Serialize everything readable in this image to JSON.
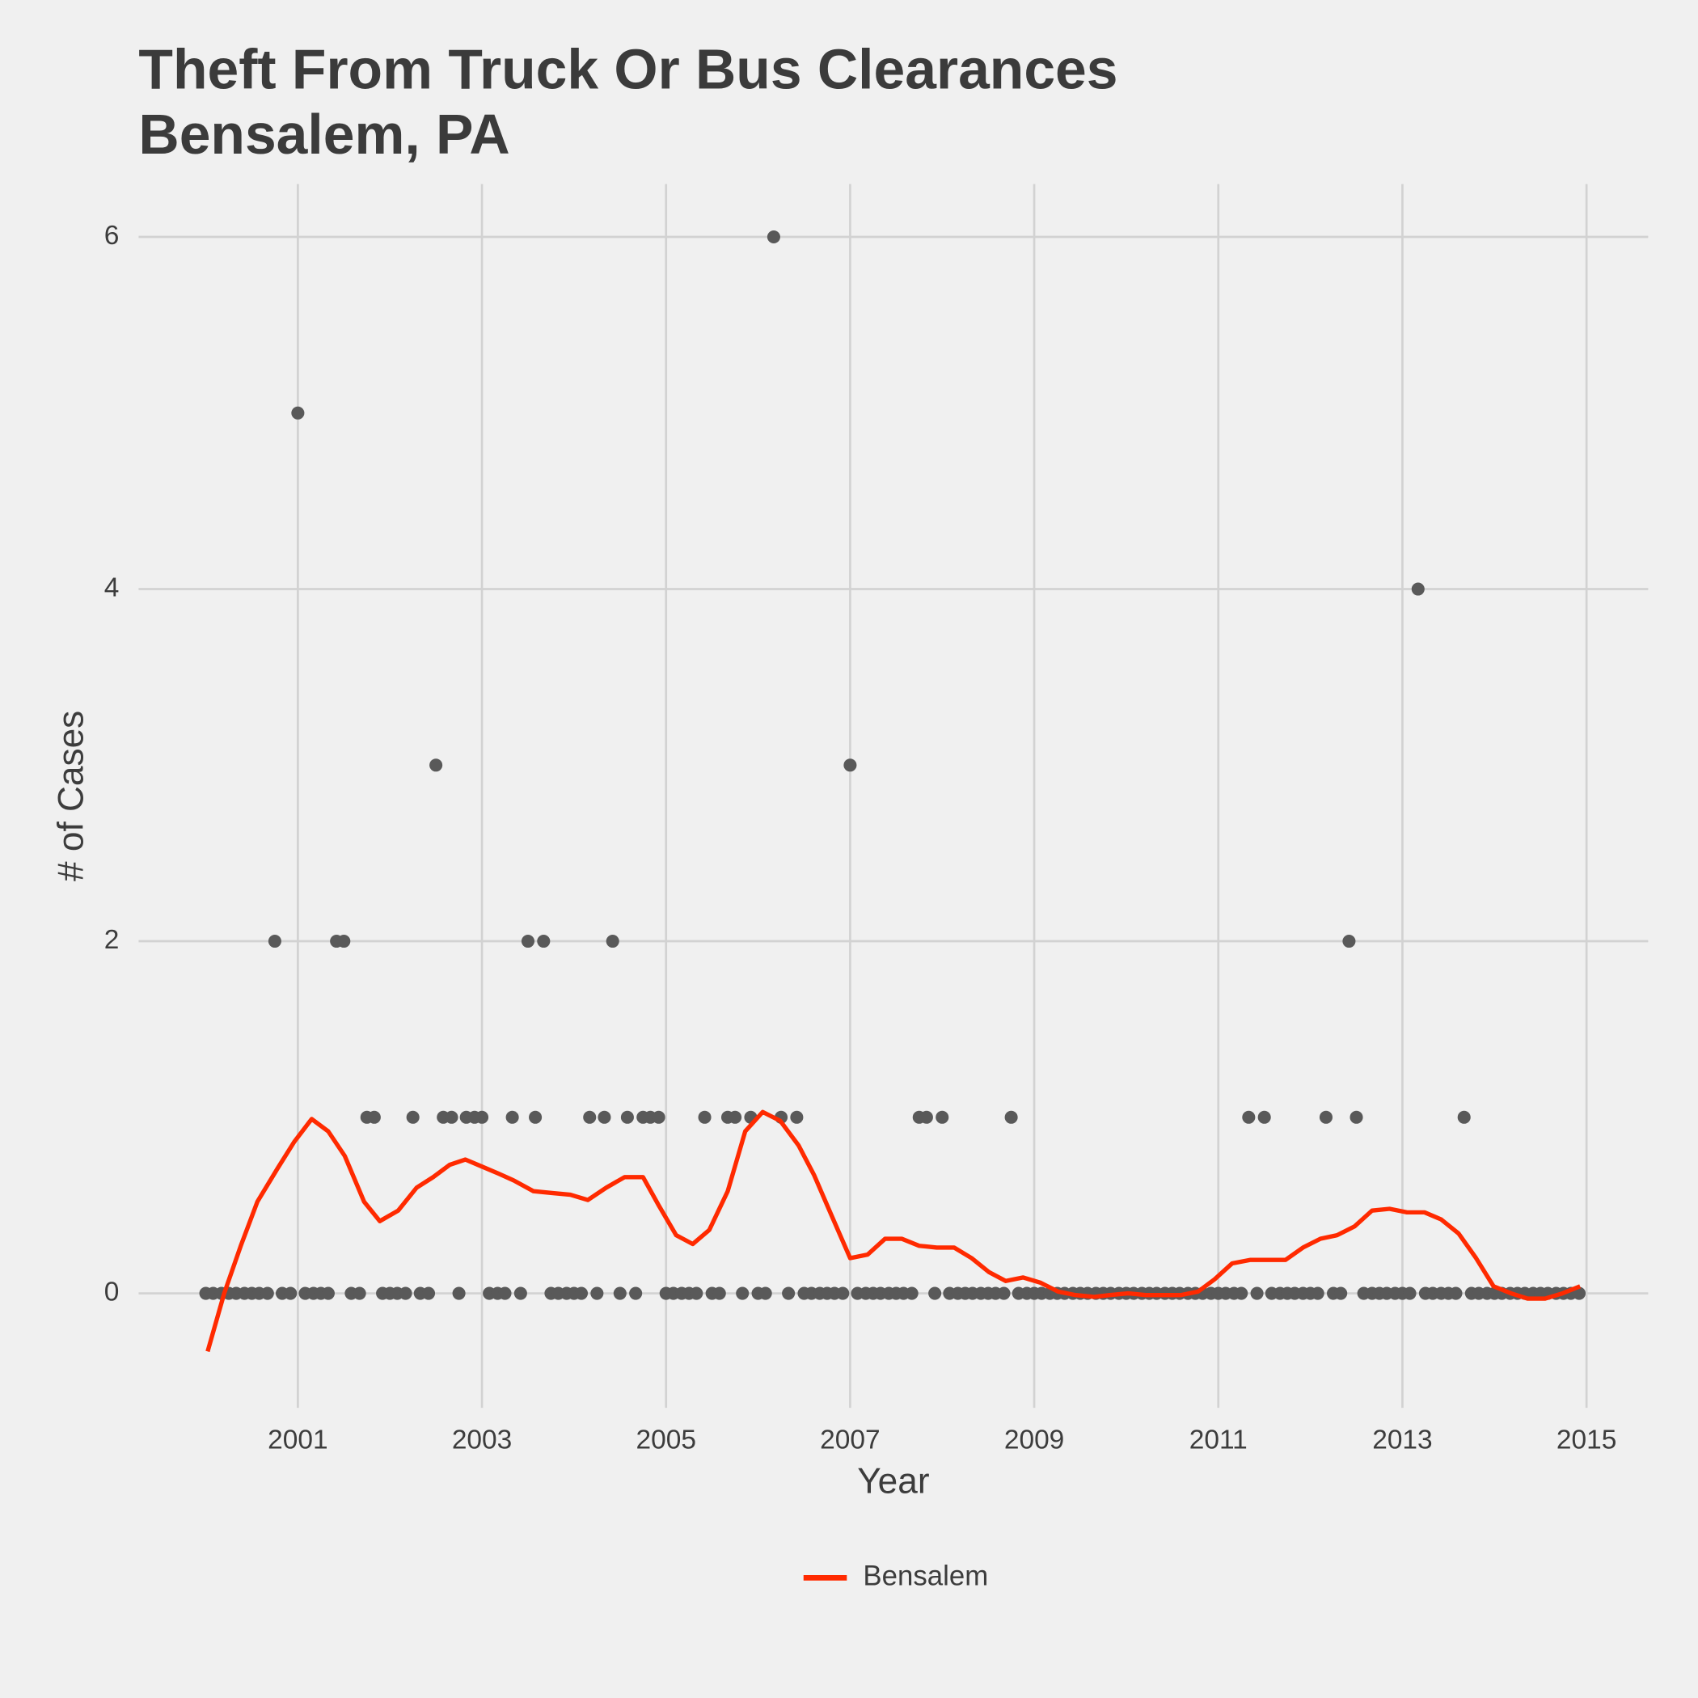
{
  "chart_data": {
    "type": "scatter",
    "title": [
      "Theft From Truck Or Bus Clearances",
      "Bensalem, PA"
    ],
    "x_label": "Year",
    "y_label": "# of Cases",
    "xlim": [
      1999.27,
      2015.67
    ],
    "ylim": [
      -0.65,
      6.3
    ],
    "xticks": [
      2001,
      2003,
      2005,
      2007,
      2009,
      2011,
      2013,
      2015
    ],
    "yticks": [
      0,
      2,
      4,
      6
    ],
    "grid": true,
    "legend": "bottom",
    "series": [
      {
        "type": "scatter",
        "color": "#595959",
        "x": [
          2000,
          2000.08,
          2000.17,
          2000.25,
          2000.33,
          2000.42,
          2000.5,
          2000.58,
          2000.67,
          2000.75,
          2000.83,
          2000.92,
          2001,
          2001.08,
          2001.17,
          2001.25,
          2001.33,
          2001.42,
          2001.5,
          2001.58,
          2001.67,
          2001.75,
          2001.83,
          2001.92,
          2002,
          2002.08,
          2002.17,
          2002.25,
          2002.33,
          2002.42,
          2002.5,
          2002.58,
          2002.67,
          2002.75,
          2002.83,
          2002.92,
          2003,
          2003.08,
          2003.17,
          2003.25,
          2003.33,
          2003.42,
          2003.5,
          2003.58,
          2003.67,
          2003.75,
          2003.83,
          2003.92,
          2004,
          2004.08,
          2004.17,
          2004.25,
          2004.33,
          2004.42,
          2004.5,
          2004.58,
          2004.67,
          2004.75,
          2004.83,
          2004.92,
          2005,
          2005.08,
          2005.17,
          2005.25,
          2005.33,
          2005.42,
          2005.5,
          2005.58,
          2005.67,
          2005.75,
          2005.83,
          2005.92,
          2006,
          2006.08,
          2006.17,
          2006.25,
          2006.33,
          2006.42,
          2006.5,
          2006.58,
          2006.67,
          2006.75,
          2006.83,
          2006.92,
          2007,
          2007.08,
          2007.17,
          2007.25,
          2007.33,
          2007.42,
          2007.5,
          2007.58,
          2007.67,
          2007.75,
          2007.83,
          2007.92,
          2008,
          2008.08,
          2008.17,
          2008.25,
          2008.33,
          2008.42,
          2008.5,
          2008.58,
          2008.67,
          2008.75,
          2008.83,
          2008.92,
          2009,
          2009.08,
          2009.17,
          2009.25,
          2009.33,
          2009.42,
          2009.5,
          2009.58,
          2009.67,
          2009.75,
          2009.83,
          2009.92,
          2010,
          2010.08,
          2010.17,
          2010.25,
          2010.33,
          2010.42,
          2010.5,
          2010.58,
          2010.67,
          2010.75,
          2010.83,
          2010.92,
          2011,
          2011.08,
          2011.17,
          2011.25,
          2011.33,
          2011.42,
          2011.5,
          2011.58,
          2011.67,
          2011.75,
          2011.83,
          2011.92,
          2012,
          2012.08,
          2012.17,
          2012.25,
          2012.33,
          2012.42,
          2012.5,
          2012.58,
          2012.67,
          2012.75,
          2012.83,
          2012.92,
          2013,
          2013.08,
          2013.17,
          2013.25,
          2013.33,
          2013.42,
          2013.5,
          2013.58,
          2013.67,
          2013.75,
          2013.83,
          2013.92,
          2014,
          2014.08,
          2014.17,
          2014.25,
          2014.33,
          2014.42,
          2014.5,
          2014.58,
          2014.67,
          2014.75,
          2014.83,
          2014.92
        ],
        "values": [
          0,
          0,
          0,
          0,
          0,
          0,
          0,
          0,
          0,
          2,
          0,
          0,
          5,
          0,
          0,
          0,
          0,
          2,
          2,
          0,
          0,
          1,
          1,
          0,
          0,
          0,
          0,
          1,
          0,
          0,
          3,
          1,
          1,
          0,
          1,
          1,
          1,
          0,
          0,
          0,
          1,
          0,
          2,
          1,
          2,
          0,
          0,
          0,
          0,
          0,
          1,
          0,
          1,
          2,
          0,
          1,
          0,
          1,
          1,
          1,
          0,
          0,
          0,
          0,
          0,
          1,
          0,
          0,
          1,
          1,
          0,
          1,
          0,
          0,
          6,
          1,
          0,
          1,
          0,
          0,
          0,
          0,
          0,
          0,
          3,
          0,
          0,
          0,
          0,
          0,
          0,
          0,
          0,
          1,
          1,
          0,
          1,
          0,
          0,
          0,
          0,
          0,
          0,
          0,
          0,
          1,
          0,
          0,
          0,
          0,
          0,
          0,
          0,
          0,
          0,
          0,
          0,
          0,
          0,
          0,
          0,
          0,
          0,
          0,
          0,
          0,
          0,
          0,
          0,
          0,
          0,
          0,
          0,
          0,
          0,
          0,
          1,
          0,
          1,
          0,
          0,
          0,
          0,
          0,
          0,
          0,
          1,
          0,
          0,
          2,
          1,
          0,
          0,
          0,
          0,
          0,
          0,
          0,
          4,
          0,
          0,
          0,
          0,
          0,
          1,
          0,
          0,
          0,
          0,
          0,
          0,
          0,
          0,
          0,
          0,
          0,
          0,
          0,
          0,
          0
        ]
      },
      {
        "type": "line",
        "name": "Bensalem",
        "color": "#ff2a00",
        "x": [
          2000.02,
          2000.2,
          2000.38,
          2000.56,
          2000.78,
          2000.96,
          2001.15,
          2001.33,
          2001.51,
          2001.72,
          2001.89,
          2002.09,
          2002.29,
          2002.47,
          2002.65,
          2002.82,
          2003,
          2003.18,
          2003.35,
          2003.56,
          2003.76,
          2003.96,
          2004.15,
          2004.35,
          2004.55,
          2004.75,
          2004.92,
          2005.11,
          2005.29,
          2005.47,
          2005.67,
          2005.86,
          2006.05,
          2006.24,
          2006.44,
          2006.61,
          2006.8,
          2007,
          2007.19,
          2007.38,
          2007.56,
          2007.75,
          2007.94,
          2008.13,
          2008.32,
          2008.51,
          2008.69,
          2008.88,
          2009.07,
          2009.26,
          2009.45,
          2009.65,
          2009.82,
          2010.02,
          2010.21,
          2010.4,
          2010.59,
          2010.78,
          2010.96,
          2011.15,
          2011.35,
          2011.54,
          2011.73,
          2011.92,
          2012.11,
          2012.29,
          2012.48,
          2012.67,
          2012.86,
          2013.05,
          2013.24,
          2013.42,
          2013.61,
          2013.8,
          2013.99,
          2014.18,
          2014.36,
          2014.55,
          2014.74,
          2014.93
        ],
        "values": [
          -0.33,
          0,
          0.27,
          0.52,
          0.71,
          0.86,
          0.99,
          0.92,
          0.78,
          0.52,
          0.41,
          0.47,
          0.6,
          0.66,
          0.73,
          0.76,
          0.72,
          0.68,
          0.64,
          0.58,
          0.57,
          0.56,
          0.53,
          0.6,
          0.66,
          0.66,
          0.5,
          0.33,
          0.28,
          0.36,
          0.58,
          0.92,
          1.03,
          0.98,
          0.84,
          0.67,
          0.44,
          0.2,
          0.22,
          0.31,
          0.31,
          0.27,
          0.26,
          0.26,
          0.2,
          0.12,
          0.07,
          0.09,
          0.06,
          0.01,
          -0.01,
          -0.02,
          -0.01,
          0,
          -0.01,
          -0.01,
          -0.01,
          0.01,
          0.08,
          0.17,
          0.19,
          0.19,
          0.19,
          0.26,
          0.31,
          0.33,
          0.38,
          0.47,
          0.48,
          0.46,
          0.46,
          0.42,
          0.34,
          0.2,
          0.04,
          0,
          -0.03,
          -0.03,
          0,
          0.04
        ]
      }
    ]
  }
}
